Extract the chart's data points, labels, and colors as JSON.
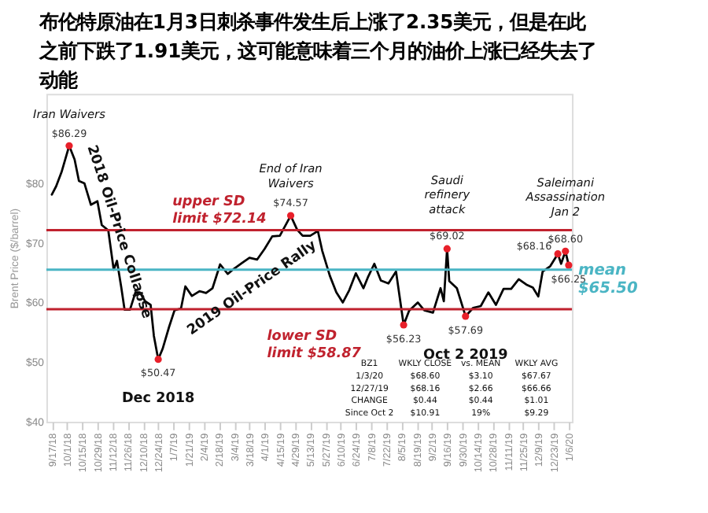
{
  "chart_data": {
    "type": "line",
    "title": "布伦特原油在1月3日刺杀事件发生后上涨了2.35美元，但是在此之前下跌了1.91美元，这可能意味着三个月的油价上涨已经失去了动能",
    "ylabel": "Brent Price ($/barrel)",
    "xlim": [
      "2018-09-12",
      "2020-01-09"
    ],
    "xticks": [
      {
        "value": "2018-09-17",
        "label": "9/17/18"
      },
      {
        "value": "2018-10-01",
        "label": "10/1/18"
      },
      {
        "value": "2018-10-15",
        "label": "10/15/18"
      },
      {
        "value": "2018-10-29",
        "label": "10/29/18"
      },
      {
        "value": "2018-11-12",
        "label": "11/12/18"
      },
      {
        "value": "2018-11-26",
        "label": "11/26/18"
      },
      {
        "value": "2018-12-10",
        "label": "12/10/18"
      },
      {
        "value": "2018-12-24",
        "label": "12/24/18"
      },
      {
        "value": "2019-01-07",
        "label": "1/7/19"
      },
      {
        "value": "2019-01-21",
        "label": "1/21/19"
      },
      {
        "value": "2019-02-04",
        "label": "2/4/19"
      },
      {
        "value": "2019-02-18",
        "label": "2/18/19"
      },
      {
        "value": "2019-03-04",
        "label": "3/4/19"
      },
      {
        "value": "2019-03-18",
        "label": "3/18/19"
      },
      {
        "value": "2019-04-01",
        "label": "4/1/19"
      },
      {
        "value": "2019-04-15",
        "label": "4/15/19"
      },
      {
        "value": "2019-04-29",
        "label": "4/29/19"
      },
      {
        "value": "2019-05-13",
        "label": "5/13/19"
      },
      {
        "value": "2019-05-27",
        "label": "5/27/19"
      },
      {
        "value": "2019-06-10",
        "label": "6/10/19"
      },
      {
        "value": "2019-06-24",
        "label": "6/24/19"
      },
      {
        "value": "2019-07-08",
        "label": "7/8/19"
      },
      {
        "value": "2019-07-22",
        "label": "7/22/19"
      },
      {
        "value": "2019-08-05",
        "label": "8/5/19"
      },
      {
        "value": "2019-08-19",
        "label": "8/19/19"
      },
      {
        "value": "2019-09-02",
        "label": "9/2/19"
      },
      {
        "value": "2019-09-16",
        "label": "9/16/19"
      },
      {
        "value": "2019-09-30",
        "label": "9/30/19"
      },
      {
        "value": "2019-10-14",
        "label": "10/14/19"
      },
      {
        "value": "2019-10-28",
        "label": "10/28/19"
      },
      {
        "value": "2019-11-11",
        "label": "11/11/19"
      },
      {
        "value": "2019-11-25",
        "label": "11/25/19"
      },
      {
        "value": "2019-12-09",
        "label": "12/9/19"
      },
      {
        "value": "2019-12-23",
        "label": "12/23/19"
      },
      {
        "value": "2020-01-06",
        "label": "1/6/20"
      }
    ],
    "ylim": [
      40,
      95
    ],
    "yticks": [
      {
        "value": 40,
        "label": "$40"
      },
      {
        "value": 50,
        "label": "$50"
      },
      {
        "value": 60,
        "label": "$60"
      },
      {
        "value": 70,
        "label": "$70"
      },
      {
        "value": 80,
        "label": "$80"
      }
    ],
    "series": [
      {
        "color": "#000000",
        "line_style": "solid",
        "x": [
          "2018-09-17",
          "2018-09-21",
          "2018-09-26",
          "2018-10-03",
          "2018-10-08",
          "2018-10-12",
          "2018-10-17",
          "2018-10-23",
          "2018-10-29",
          "2018-11-02",
          "2018-11-08",
          "2018-11-13",
          "2018-11-16",
          "2018-11-20",
          "2018-11-23",
          "2018-11-28",
          "2018-12-03",
          "2018-12-07",
          "2018-12-12",
          "2018-12-17",
          "2018-12-20",
          "2018-12-24",
          "2018-12-28",
          "2019-01-03",
          "2019-01-08",
          "2019-01-14",
          "2019-01-18",
          "2019-01-24",
          "2019-01-31",
          "2019-02-06",
          "2019-02-12",
          "2019-02-19",
          "2019-02-26",
          "2019-03-04",
          "2019-03-11",
          "2019-03-18",
          "2019-03-25",
          "2019-04-01",
          "2019-04-08",
          "2019-04-15",
          "2019-04-25",
          "2019-05-01",
          "2019-05-06",
          "2019-05-13",
          "2019-05-20",
          "2019-05-24",
          "2019-05-31",
          "2019-06-06",
          "2019-06-12",
          "2019-06-18",
          "2019-06-24",
          "2019-07-01",
          "2019-07-05",
          "2019-07-11",
          "2019-07-17",
          "2019-07-24",
          "2019-07-31",
          "2019-08-07",
          "2019-08-12",
          "2019-08-20",
          "2019-08-26",
          "2019-09-03",
          "2019-09-10",
          "2019-09-13",
          "2019-09-16",
          "2019-09-18",
          "2019-09-25",
          "2019-10-01",
          "2019-10-03",
          "2019-10-10",
          "2019-10-17",
          "2019-10-24",
          "2019-10-31",
          "2019-11-07",
          "2019-11-14",
          "2019-11-21",
          "2019-11-28",
          "2019-12-04",
          "2019-12-09",
          "2019-12-13",
          "2019-12-20",
          "2019-12-27",
          "2019-12-30",
          "2020-01-03",
          "2020-01-06"
        ],
        "values": [
          78.1,
          79.5,
          81.9,
          86.29,
          84.0,
          80.4,
          80.0,
          76.4,
          77.0,
          73.0,
          72.1,
          65.5,
          67.0,
          62.5,
          58.8,
          58.8,
          61.7,
          61.7,
          60.2,
          59.6,
          54.4,
          50.47,
          52.2,
          55.9,
          58.7,
          59.0,
          62.7,
          61.1,
          61.9,
          61.6,
          62.4,
          66.4,
          64.8,
          65.7,
          66.6,
          67.5,
          67.2,
          69.0,
          71.1,
          71.2,
          74.57,
          72.2,
          71.2,
          71.2,
          72.0,
          68.7,
          64.5,
          61.7,
          60.0,
          62.1,
          64.9,
          62.4,
          64.2,
          66.5,
          63.7,
          63.2,
          65.2,
          56.23,
          58.6,
          60.0,
          58.7,
          58.3,
          62.4,
          60.2,
          69.02,
          63.6,
          62.4,
          58.9,
          57.69,
          59.1,
          59.4,
          61.7,
          59.6,
          62.3,
          62.3,
          63.9,
          63.0,
          62.5,
          61.0,
          65.2,
          66.1,
          68.16,
          66.5,
          68.6,
          66.25
        ]
      },
      {
        "type": "scatter",
        "color": "#e8202a",
        "marker": "circle",
        "x": [
          "2018-10-03",
          "2018-12-24",
          "2019-04-25",
          "2019-08-07",
          "2019-09-16",
          "2019-10-03",
          "2019-12-27",
          "2020-01-03",
          "2020-01-06"
        ],
        "values": [
          86.29,
          50.47,
          74.57,
          56.23,
          69.02,
          57.69,
          68.16,
          68.6,
          66.25
        ],
        "value_labels": [
          "$86.29",
          "$50.47",
          "$74.57",
          "$56.23",
          "$69.02",
          "$57.69",
          "$68.16",
          "$68.60",
          "$66.25"
        ]
      }
    ],
    "ref_lines": [
      {
        "axis": "y",
        "value": 72.14,
        "label": "upper SD limit $72.14",
        "color": "#c0222e"
      },
      {
        "axis": "y",
        "value": 65.5,
        "label": "mean $65.50",
        "color": "#4ab5c4"
      },
      {
        "axis": "y",
        "value": 58.87,
        "label": "lower SD limit $58.87",
        "color": "#c0222e"
      }
    ],
    "annotations": [
      {
        "text": "Iran Waivers",
        "x": "2018-10-03",
        "y": 86.29
      },
      {
        "text": "End of Iran Waivers",
        "x": "2019-04-25",
        "y": 74.57
      },
      {
        "text": "Saudi refinery attack",
        "x": "2019-09-16",
        "y": 69.02
      },
      {
        "text": "Saleimani Assassination Jan 2",
        "x": "2020-01-03",
        "y": 68.6
      },
      {
        "text": "Dec 2018",
        "x": "2018-12-24",
        "y": 50.47
      },
      {
        "text": "Oct 2 2019",
        "x": "2019-10-03",
        "y": 57.69
      },
      "2018 Oil-Price Collapse",
      "2019 Oil-Price Rally",
      "BZ1",
      "WKLY CLOSE",
      "vs. MEAN",
      "WKLY AVG",
      "1/3/20",
      "$68.60",
      "$3.10",
      "$67.67",
      "12/27/19",
      "$68.16",
      "$2.66",
      "$66.66",
      "CHANGE",
      "$0.44",
      "$0.44",
      "$1.01",
      "Since Oct 2",
      "$10.91",
      "19%",
      "$9.29"
    ]
  }
}
